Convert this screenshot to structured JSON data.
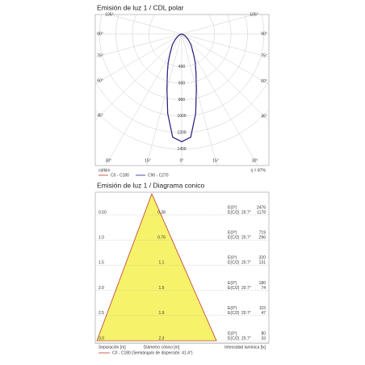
{
  "polar": {
    "title": "Emisión de luz 1 / CDL polar",
    "angle_ticks": [
      {
        "value": 105,
        "label": "105°"
      },
      {
        "value": 90,
        "label": "90°"
      },
      {
        "value": 75,
        "label": "75°"
      },
      {
        "value": 60,
        "label": "60°"
      },
      {
        "value": 45,
        "label": "45°"
      },
      {
        "value": 30,
        "label": "30°"
      },
      {
        "value": 15,
        "label": "15°"
      },
      {
        "value": 0,
        "label": "0°"
      }
    ],
    "rlim": [
      0,
      1600
    ],
    "rticks": [
      400,
      600,
      800,
      1000,
      1200,
      1400
    ],
    "unit": "cd/klm",
    "efficiency": "η = 87%",
    "series": [
      {
        "name": "C0 - C180",
        "color": "#c0392b",
        "angles": [
          0,
          5,
          10,
          15,
          20,
          25,
          30,
          40,
          50,
          60,
          70,
          80
        ],
        "values": [
          1310,
          1260,
          980,
          690,
          510,
          390,
          290,
          180,
          100,
          50,
          20,
          0
        ]
      },
      {
        "name": "C90 - C270",
        "color": "#1f1f8f",
        "angles": [
          0,
          5,
          10,
          15,
          20,
          25,
          30,
          40,
          50,
          60,
          70,
          80
        ],
        "values": [
          1310,
          1260,
          980,
          690,
          510,
          390,
          290,
          180,
          100,
          50,
          20,
          0
        ]
      }
    ]
  },
  "cone": {
    "title": "Emisión de luz 1 / Diagrama conico",
    "rows": [
      {
        "height": "0.50",
        "diameter": "0.38",
        "e0": "E(0°)",
        "ec": "E(C/2)",
        "angle": "20.7°",
        "e0_value": 2476,
        "ec_value": 1178
      },
      {
        "height": "1.0",
        "diameter": "0.76",
        "e0": "E(0°)",
        "ec": "E(C/2)",
        "angle": "20.7°",
        "e0_value": 719,
        "ec_value": 296
      },
      {
        "height": "1.5",
        "diameter": "1.1",
        "e0": "E(0°)",
        "ec": "E(C/2)",
        "angle": "20.7°",
        "e0_value": 320,
        "ec_value": 131
      },
      {
        "height": "2.0",
        "diameter": "1.5",
        "e0": "E(0°)",
        "ec": "E(C/2)",
        "angle": "20.7°",
        "e0_value": 180,
        "ec_value": 74
      },
      {
        "height": "2.5",
        "diameter": "1.9",
        "e0": "E(0°)",
        "ec": "E(C/2)",
        "angle": "20.7°",
        "e0_value": 115,
        "ec_value": 47
      },
      {
        "height": "3.0",
        "diameter": "2.3",
        "e0": "E(0°)",
        "ec": "E(C/2)",
        "angle": "20.7°",
        "e0_value": 80,
        "ec_value": 33
      }
    ],
    "footer": [
      "Separación [m]",
      "Diámetro cónico [m]",
      "Intensidad lumínica [lx]"
    ],
    "legend": "C0 - C180 (Semiángulo de dispersión: 41.4°)"
  }
}
